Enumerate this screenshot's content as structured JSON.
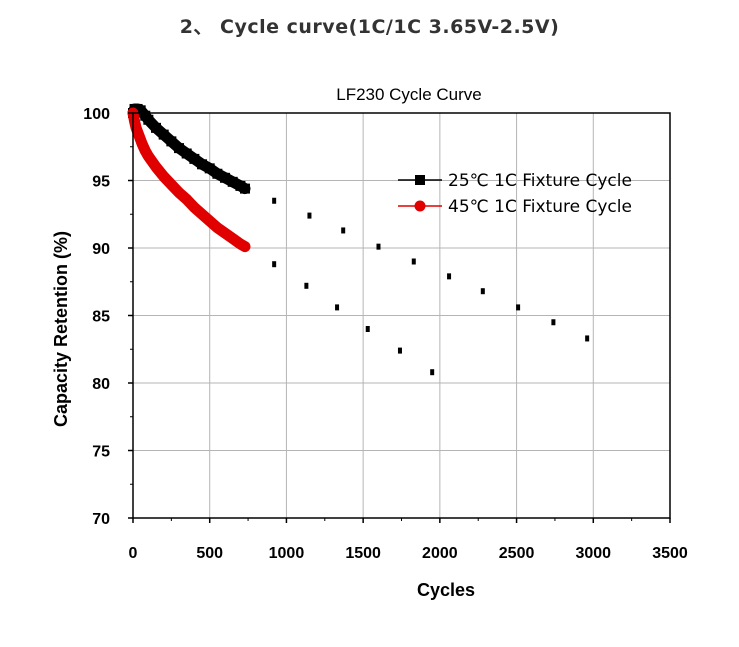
{
  "page": {
    "heading": "2、  Cycle curve(1C/1C 3.65V-2.5V)"
  },
  "chart_data": {
    "type": "line",
    "title": "LF230 Cycle Curve",
    "xlabel": "Cycles",
    "ylabel": "Capacity Retention (%)",
    "xlim": [
      0,
      3500
    ],
    "ylim": [
      70,
      100
    ],
    "xticks": [
      0,
      500,
      1000,
      1500,
      2000,
      2500,
      3000,
      3500
    ],
    "yticks": [
      70,
      75,
      80,
      85,
      90,
      95,
      100
    ],
    "grid": true,
    "legend_position": "top-right",
    "series": [
      {
        "name": "25℃ 1C  Fixture Cycle",
        "color": "#000000",
        "marker": "square",
        "x": [
          0,
          10,
          30,
          50,
          80,
          100,
          150,
          200,
          250,
          300,
          350,
          400,
          450,
          500,
          550,
          600,
          650,
          700,
          730
        ],
        "y": [
          100.0,
          100.3,
          100.3,
          100.2,
          99.8,
          99.5,
          98.9,
          98.4,
          97.9,
          97.4,
          97.0,
          96.6,
          96.2,
          95.9,
          95.5,
          95.2,
          94.9,
          94.6,
          94.4
        ],
        "projection": [
          [
            920,
            93.5
          ],
          [
            1150,
            92.4
          ],
          [
            1370,
            91.3
          ],
          [
            1600,
            90.1
          ],
          [
            1830,
            89.0
          ],
          [
            2060,
            87.9
          ],
          [
            2280,
            86.8
          ],
          [
            2510,
            85.6
          ],
          [
            2740,
            84.5
          ],
          [
            2960,
            83.3
          ]
        ]
      },
      {
        "name": "45℃ 1C  Fixture Cycle",
        "color": "#e00000",
        "marker": "circle",
        "x": [
          0,
          10,
          20,
          40,
          60,
          80,
          100,
          150,
          200,
          250,
          300,
          350,
          400,
          450,
          500,
          550,
          600,
          650,
          700,
          730
        ],
        "y": [
          100.0,
          99.4,
          98.9,
          98.3,
          97.7,
          97.2,
          96.8,
          96.0,
          95.3,
          94.7,
          94.1,
          93.6,
          93.0,
          92.5,
          92.0,
          91.5,
          91.1,
          90.7,
          90.3,
          90.1
        ],
        "projection": [
          [
            920,
            88.8
          ],
          [
            1130,
            87.2
          ],
          [
            1330,
            85.6
          ],
          [
            1530,
            84.0
          ],
          [
            1740,
            82.4
          ],
          [
            1950,
            80.8
          ]
        ]
      }
    ]
  }
}
